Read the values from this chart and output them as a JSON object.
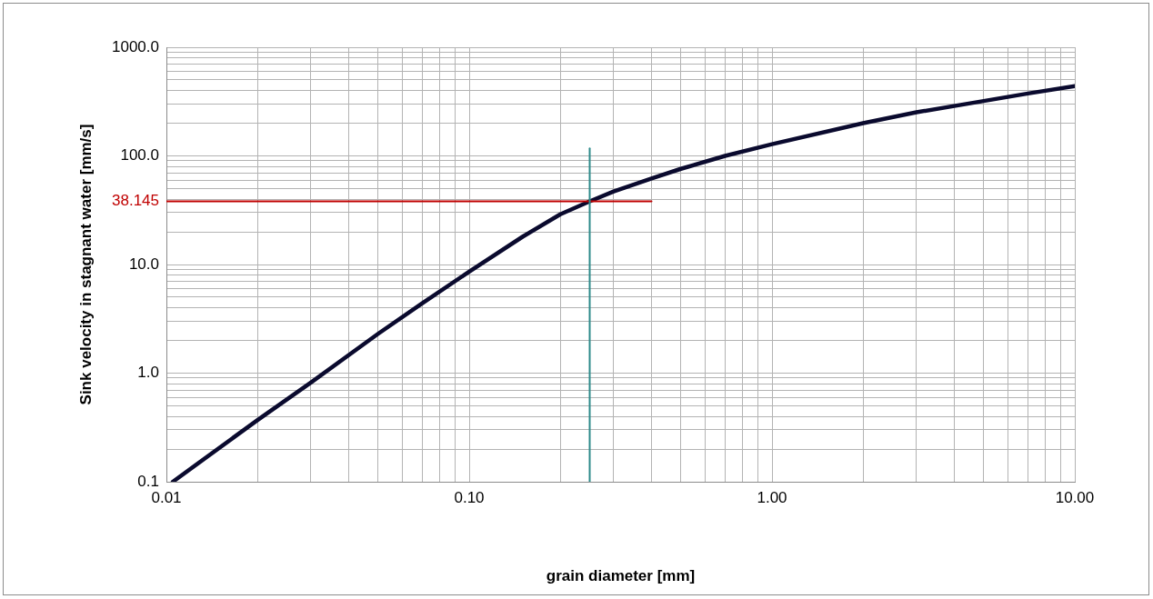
{
  "chart_data": {
    "type": "line",
    "xlabel": "grain diameter [mm]",
    "ylabel": "Sink velocity in stagnant water [mm/s]",
    "log": "xy",
    "grid": true,
    "legend": false,
    "marker": "none",
    "line_style": "solid",
    "xlim": [
      0.01,
      10
    ],
    "ylim": [
      0.1,
      1000
    ],
    "xticks": [
      {
        "value": 0.01,
        "label": "0.01"
      },
      {
        "value": 0.02,
        "label": null
      },
      {
        "value": 0.03,
        "label": null
      },
      {
        "value": 0.04,
        "label": null
      },
      {
        "value": 0.05,
        "label": null
      },
      {
        "value": 0.06,
        "label": null
      },
      {
        "value": 0.07,
        "label": null
      },
      {
        "value": 0.08,
        "label": null
      },
      {
        "value": 0.09,
        "label": null
      },
      {
        "value": 0.1,
        "label": "0.10"
      },
      {
        "value": 0.2,
        "label": null
      },
      {
        "value": 0.3,
        "label": null
      },
      {
        "value": 0.4,
        "label": null
      },
      {
        "value": 0.5,
        "label": null
      },
      {
        "value": 0.6,
        "label": null
      },
      {
        "value": 0.7,
        "label": null
      },
      {
        "value": 0.8,
        "label": null
      },
      {
        "value": 0.9,
        "label": null
      },
      {
        "value": 1,
        "label": "1.00"
      },
      {
        "value": 2,
        "label": null
      },
      {
        "value": 3,
        "label": null
      },
      {
        "value": 4,
        "label": null
      },
      {
        "value": 5,
        "label": null
      },
      {
        "value": 6,
        "label": null
      },
      {
        "value": 7,
        "label": null
      },
      {
        "value": 8,
        "label": null
      },
      {
        "value": 9,
        "label": null
      },
      {
        "value": 10,
        "label": "10.00"
      }
    ],
    "yticks": [
      {
        "value": 0.1,
        "label": "0.1"
      },
      {
        "value": 0.2,
        "label": null
      },
      {
        "value": 0.3,
        "label": null
      },
      {
        "value": 0.4,
        "label": null
      },
      {
        "value": 0.5,
        "label": null
      },
      {
        "value": 0.6,
        "label": null
      },
      {
        "value": 0.7,
        "label": null
      },
      {
        "value": 0.8,
        "label": null
      },
      {
        "value": 0.9,
        "label": null
      },
      {
        "value": 1,
        "label": "1.0"
      },
      {
        "value": 2,
        "label": null
      },
      {
        "value": 3,
        "label": null
      },
      {
        "value": 4,
        "label": null
      },
      {
        "value": 5,
        "label": null
      },
      {
        "value": 6,
        "label": null
      },
      {
        "value": 7,
        "label": null
      },
      {
        "value": 8,
        "label": null
      },
      {
        "value": 9,
        "label": null
      },
      {
        "value": 10,
        "label": "10.0"
      },
      {
        "value": 20,
        "label": null
      },
      {
        "value": 30,
        "label": null
      },
      {
        "value": 40,
        "label": null
      },
      {
        "value": 50,
        "label": null
      },
      {
        "value": 60,
        "label": null
      },
      {
        "value": 70,
        "label": null
      },
      {
        "value": 80,
        "label": null
      },
      {
        "value": 90,
        "label": null
      },
      {
        "value": 100,
        "label": "100.0"
      },
      {
        "value": 200,
        "label": null
      },
      {
        "value": 300,
        "label": null
      },
      {
        "value": 400,
        "label": null
      },
      {
        "value": 500,
        "label": null
      },
      {
        "value": 600,
        "label": null
      },
      {
        "value": 700,
        "label": null
      },
      {
        "value": 800,
        "label": null
      },
      {
        "value": 900,
        "label": null
      },
      {
        "value": 1000,
        "label": "1000.0"
      }
    ],
    "series": [
      {
        "color": "#0a0a2e",
        "x": [
          0.0105,
          0.02,
          0.03,
          0.05,
          0.07,
          0.1,
          0.15,
          0.2,
          0.25,
          0.3,
          0.4,
          0.5,
          0.7,
          1,
          2,
          3,
          5,
          7,
          10
        ],
        "values": [
          0.1,
          0.37,
          0.82,
          2.3,
          4.4,
          8.6,
          18,
          29,
          38.145,
          47,
          62,
          76,
          100,
          128,
          200,
          252,
          320,
          375,
          440
        ]
      },
      {
        "color": "#c00000",
        "x": [
          0.01,
          0.4
        ],
        "values": [
          38.145,
          38.145
        ]
      },
      {
        "color": "#2e8b8b",
        "x": [
          0.25,
          0.25
        ],
        "values": [
          0.1,
          117
        ]
      }
    ],
    "annotations": [
      "38.145"
    ]
  }
}
